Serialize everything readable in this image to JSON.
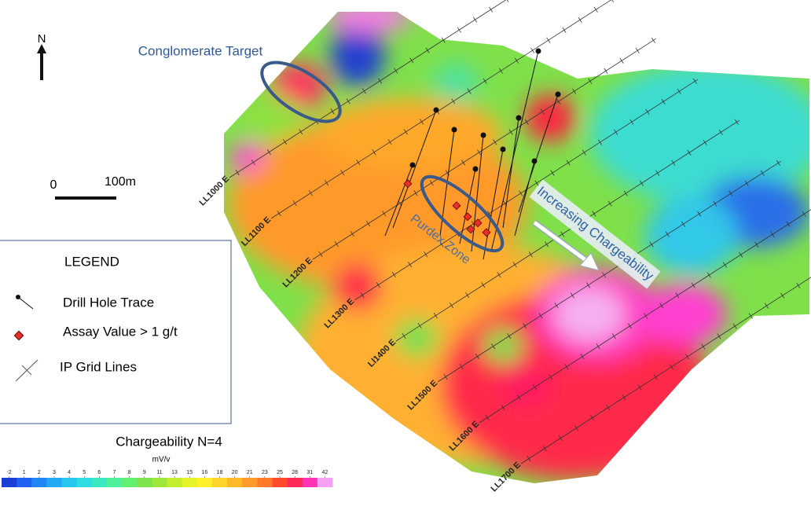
{
  "north_arrow": {
    "label": "N"
  },
  "scale_bar": {
    "start": "0",
    "end": "100m"
  },
  "annotations": {
    "conglomerate_target": "Conglomerate Target",
    "zone": "Purdex Zone",
    "trend": "Increasing Chargeability"
  },
  "legend": {
    "title": "LEGEND",
    "items": [
      "Drill Hole Trace",
      "Assay Value > 1 g/t",
      "IP Grid Lines"
    ]
  },
  "grid_lines": [
    "LL1000 E",
    "LL1100 E",
    "LL1200 E",
    "LL1300 E",
    "Ll1400 E",
    "LL1500 E",
    "LL1600 E",
    "LL1700 E"
  ],
  "color_scale": {
    "title": "Chargeability N=4",
    "unit": "mV/v",
    "ticks": [
      -2,
      1,
      2,
      3,
      4,
      5,
      6,
      7,
      8,
      9,
      11,
      13,
      15,
      16,
      18,
      20,
      21,
      23,
      25,
      28,
      31,
      42
    ],
    "colors": [
      "#1b3fd6",
      "#1f62f0",
      "#1f86f5",
      "#22a8f5",
      "#27c6ee",
      "#2fdde0",
      "#3be8c0",
      "#4ef09a",
      "#62f070",
      "#7ee24c",
      "#9ee63a",
      "#c2ee2e",
      "#e6f22a",
      "#fff02a",
      "#ffd42a",
      "#ffb82a",
      "#ff9a2a",
      "#ff7a2a",
      "#ff4a2e",
      "#ff2a5a",
      "#ff34b4",
      "#f5a0f2"
    ]
  }
}
